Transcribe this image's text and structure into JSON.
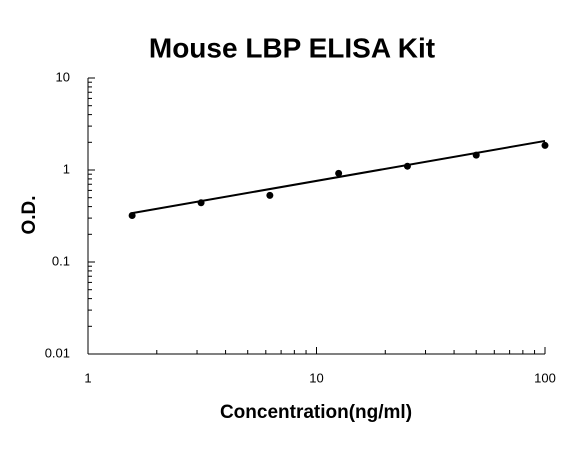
{
  "chart_data": {
    "type": "scatter",
    "title": "Mouse LBP ELISA Kit",
    "x_label": "Concentration(ng/ml)",
    "y_label": "O.D.",
    "x_scale": "log",
    "y_scale": "log",
    "xlim": [
      1,
      100
    ],
    "ylim": [
      0.01,
      10
    ],
    "xticks": [
      1,
      10,
      100
    ],
    "yticks": [
      0.01,
      0.1,
      1,
      10
    ],
    "xminorticks": [
      2,
      3,
      4,
      5,
      6,
      7,
      8,
      9,
      20,
      30,
      40,
      50,
      60,
      70,
      80,
      90
    ],
    "yminorticks": [
      0.02,
      0.03,
      0.04,
      0.05,
      0.06,
      0.07,
      0.08,
      0.09,
      0.2,
      0.3,
      0.4,
      0.5,
      0.6,
      0.7,
      0.8,
      0.9,
      2,
      3,
      4,
      5,
      6,
      7,
      8,
      9
    ],
    "series": [
      {
        "x": [
          1.56,
          3.125,
          6.25,
          12.5,
          25,
          50,
          100
        ],
        "values": [
          0.32,
          0.44,
          0.53,
          0.92,
          1.1,
          1.45,
          1.85
        ],
        "color": "#000000",
        "mode": "markers"
      },
      {
        "x": [
          1.56,
          100
        ],
        "values": [
          0.34,
          2.07
        ],
        "color": "#000000",
        "mode": "line"
      }
    ]
  }
}
